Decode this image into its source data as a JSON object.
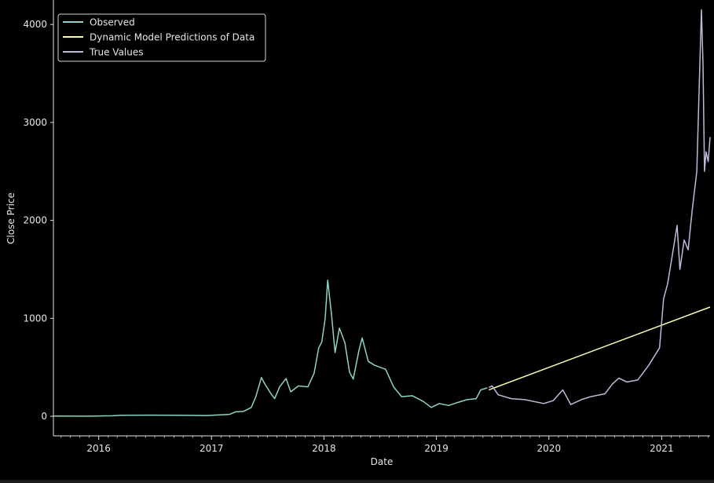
{
  "chart_data": {
    "type": "line",
    "title": "",
    "xlabel": "Date",
    "ylabel": "Close Price",
    "x_range": [
      "2015-08-07",
      "2021-06-07"
    ],
    "ylim": [
      -200,
      4250
    ],
    "y_ticks": [
      0,
      1000,
      2000,
      3000,
      4000
    ],
    "x_ticks": [
      "2016",
      "2017",
      "2018",
      "2019",
      "2020",
      "2021"
    ],
    "grid": false,
    "legend": "top-left",
    "series": [
      {
        "name": "Observed",
        "color": "#8dd3c7",
        "points": [
          [
            "2015-08-07",
            2
          ],
          [
            "2015-12-01",
            1
          ],
          [
            "2016-02-15",
            5
          ],
          [
            "2016-03-15",
            10
          ],
          [
            "2016-06-15",
            12
          ],
          [
            "2016-09-15",
            10
          ],
          [
            "2016-12-15",
            8
          ],
          [
            "2017-03-01",
            20
          ],
          [
            "2017-03-20",
            45
          ],
          [
            "2017-04-15",
            50
          ],
          [
            "2017-05-10",
            90
          ],
          [
            "2017-05-25",
            200
          ],
          [
            "2017-06-12",
            395
          ],
          [
            "2017-06-25",
            320
          ],
          [
            "2017-07-15",
            220
          ],
          [
            "2017-07-25",
            180
          ],
          [
            "2017-08-10",
            300
          ],
          [
            "2017-08-31",
            385
          ],
          [
            "2017-09-15",
            250
          ],
          [
            "2017-10-10",
            310
          ],
          [
            "2017-11-10",
            300
          ],
          [
            "2017-11-30",
            440
          ],
          [
            "2017-12-15",
            700
          ],
          [
            "2017-12-25",
            760
          ],
          [
            "2018-01-05",
            1000
          ],
          [
            "2018-01-13",
            1390
          ],
          [
            "2018-01-25",
            1050
          ],
          [
            "2018-02-06",
            650
          ],
          [
            "2018-02-20",
            900
          ],
          [
            "2018-03-10",
            750
          ],
          [
            "2018-03-25",
            450
          ],
          [
            "2018-04-06",
            380
          ],
          [
            "2018-04-25",
            680
          ],
          [
            "2018-05-05",
            800
          ],
          [
            "2018-05-25",
            560
          ],
          [
            "2018-06-15",
            520
          ],
          [
            "2018-07-20",
            480
          ],
          [
            "2018-08-15",
            300
          ],
          [
            "2018-09-10",
            200
          ],
          [
            "2018-10-15",
            210
          ],
          [
            "2018-11-20",
            150
          ],
          [
            "2018-12-15",
            90
          ],
          [
            "2019-01-10",
            130
          ],
          [
            "2019-02-10",
            110
          ],
          [
            "2019-03-10",
            140
          ],
          [
            "2019-04-10",
            170
          ],
          [
            "2019-05-10",
            180
          ],
          [
            "2019-05-25",
            270
          ],
          [
            "2019-06-15",
            290
          ]
        ]
      },
      {
        "name": "Dynamic Model Predictions of Data",
        "color": "#ffffb3",
        "points": [
          [
            "2019-06-20",
            270
          ],
          [
            "2021-06-07",
            1115
          ]
        ]
      },
      {
        "name": "True Values",
        "color": "#bebada",
        "points": [
          [
            "2019-06-20",
            295
          ],
          [
            "2019-07-01",
            310
          ],
          [
            "2019-07-20",
            220
          ],
          [
            "2019-09-01",
            180
          ],
          [
            "2019-10-15",
            170
          ],
          [
            "2019-12-15",
            130
          ],
          [
            "2020-01-15",
            160
          ],
          [
            "2020-02-15",
            270
          ],
          [
            "2020-03-12",
            120
          ],
          [
            "2020-04-15",
            170
          ],
          [
            "2020-05-15",
            200
          ],
          [
            "2020-07-01",
            230
          ],
          [
            "2020-07-25",
            330
          ],
          [
            "2020-08-15",
            390
          ],
          [
            "2020-09-10",
            350
          ],
          [
            "2020-10-15",
            370
          ],
          [
            "2020-11-20",
            520
          ],
          [
            "2020-12-25",
            700
          ],
          [
            "2021-01-07",
            1200
          ],
          [
            "2021-01-20",
            1350
          ],
          [
            "2021-02-10",
            1750
          ],
          [
            "2021-02-20",
            1950
          ],
          [
            "2021-03-01",
            1500
          ],
          [
            "2021-03-15",
            1800
          ],
          [
            "2021-03-28",
            1700
          ],
          [
            "2021-04-10",
            2100
          ],
          [
            "2021-04-25",
            2500
          ],
          [
            "2021-05-03",
            3400
          ],
          [
            "2021-05-10",
            4150
          ],
          [
            "2021-05-15",
            3600
          ],
          [
            "2021-05-20",
            2500
          ],
          [
            "2021-05-25",
            2700
          ],
          [
            "2021-06-01",
            2600
          ],
          [
            "2021-06-07",
            2850
          ]
        ]
      }
    ]
  }
}
